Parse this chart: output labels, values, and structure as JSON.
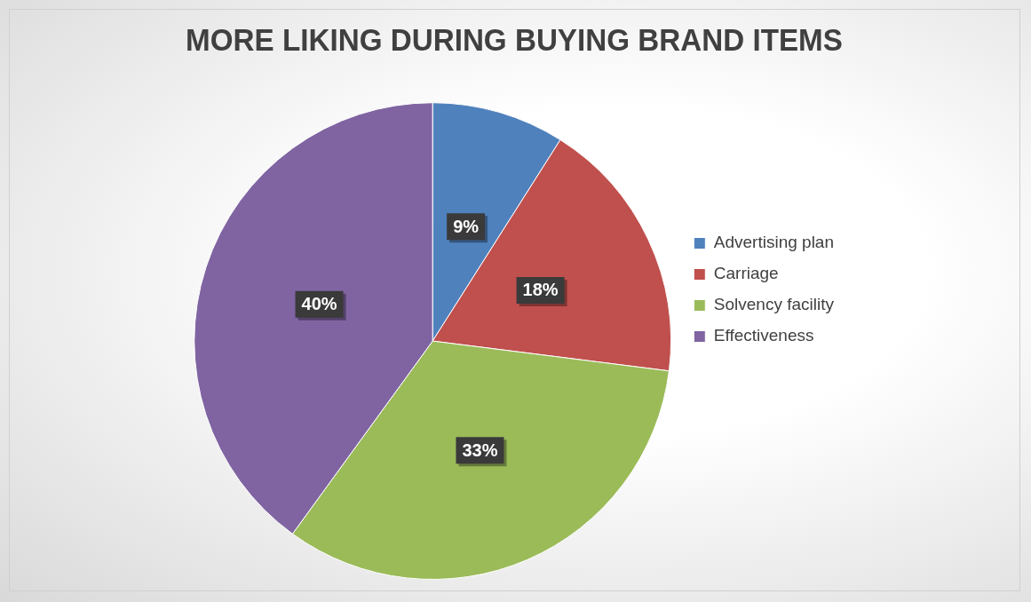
{
  "chart_data": {
    "type": "pie",
    "title": "MORE LIKING DURING BUYING BRAND ITEMS",
    "categories": [
      "Advertising plan",
      "Carriage",
      "Solvency facility",
      "Effectiveness"
    ],
    "values": [
      9,
      18,
      33,
      40
    ],
    "colors": [
      "#4f81bd",
      "#c0504d",
      "#9bbb59",
      "#8064a2"
    ],
    "value_labels": [
      "9%",
      "18%",
      "33%",
      "40%"
    ],
    "legend": "right"
  }
}
